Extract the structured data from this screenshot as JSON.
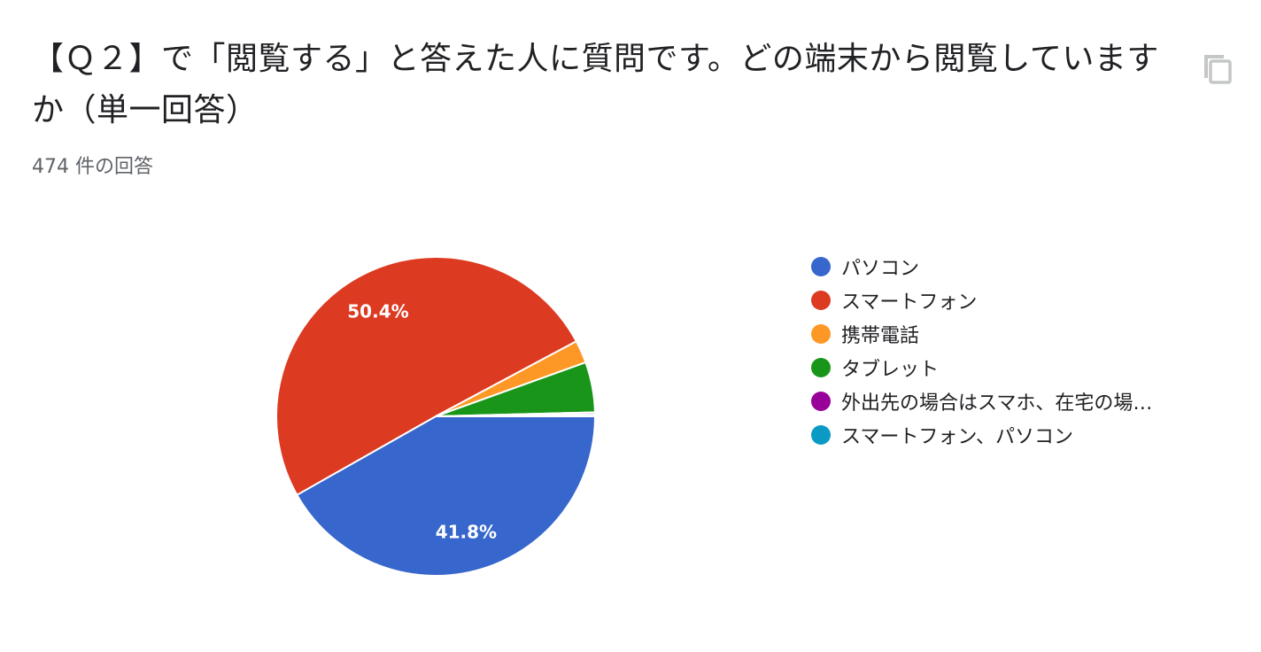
{
  "header": {
    "title": "【Ｑ２】で「閲覧する」と答えた人に質問です。どの端末から閲覧していますか（単一回答）",
    "response_count": "474 件の回答",
    "copy_icon": "copy-icon"
  },
  "chart_data": {
    "type": "pie",
    "categories": [
      "パソコン",
      "スマートフォン",
      "携帯電話",
      "タブレット",
      "外出先の場合はスマホ、在宅の場…",
      "スマートフォン、パソコン"
    ],
    "values": [
      41.8,
      50.4,
      2.3,
      5.1,
      0.2,
      0.2
    ],
    "value_unit": "%",
    "data_labels": [
      "41.8%",
      "50.4%",
      "",
      "",
      "",
      ""
    ],
    "colors": [
      "#3766CC",
      "#DC3A21",
      "#FD9826",
      "#199619",
      "#990099",
      "#0B99C6"
    ],
    "legend_position": "right"
  }
}
